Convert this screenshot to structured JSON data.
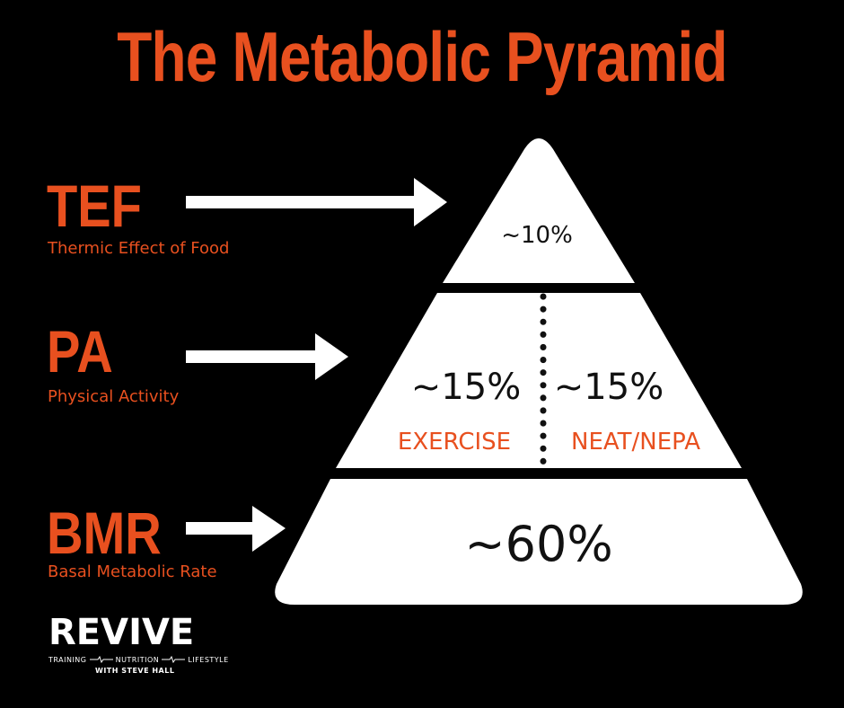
{
  "title": "The Metabolic Pyramid",
  "colors": {
    "accent": "#e8501f",
    "background": "#000000",
    "pyramid": "#ffffff",
    "text_dark": "#111111"
  },
  "components": [
    {
      "abbr": "TEF",
      "full": "Thermic Effect of Food"
    },
    {
      "abbr": "PA",
      "full": "Physical Activity"
    },
    {
      "abbr": "BMR",
      "full": "Basal Metabolic Rate"
    }
  ],
  "pyramid": {
    "top": {
      "value": "~10%"
    },
    "middle": {
      "left": {
        "value": "~15%",
        "label": "EXERCISE"
      },
      "right": {
        "value": "~15%",
        "label": "NEAT/NEPA"
      }
    },
    "bottom": {
      "value": "~60%"
    }
  },
  "logo": {
    "name": "REVIVE",
    "tag1": "TRAINING",
    "tag2": "NUTRITION",
    "tag3": "LIFESTYLE",
    "sub": "WITH STEVE HALL"
  }
}
